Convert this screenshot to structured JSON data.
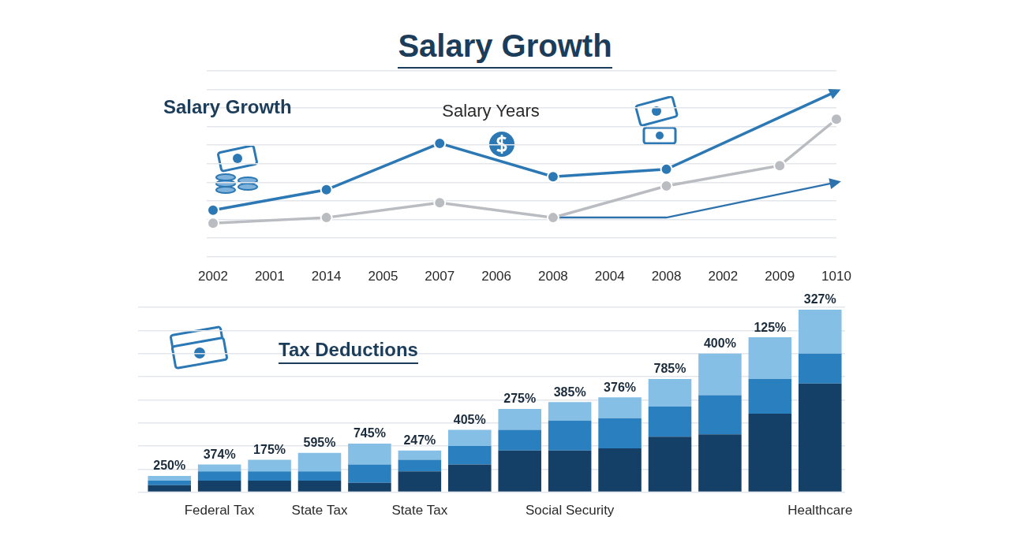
{
  "header": {
    "title": "Salary Growth"
  },
  "chart_data": [
    {
      "type": "line",
      "title": "Salary Growth",
      "subtitle": "Salary Years",
      "categories": [
        "2002",
        "2001",
        "2014",
        "2005",
        "2007",
        "2006",
        "2008",
        "2004",
        "2008",
        "2002",
        "2009",
        "1010"
      ],
      "series": [
        {
          "color": "#2b78b4",
          "marker": "circle",
          "line_style": "arrow",
          "values": [
            25,
            null,
            36,
            null,
            61,
            null,
            43,
            null,
            47,
            null,
            null,
            89
          ]
        },
        {
          "color": "#b9bcc0",
          "marker": "circle",
          "line_style": "solid",
          "values": [
            18,
            null,
            21,
            null,
            29,
            null,
            21,
            null,
            38,
            null,
            49,
            74
          ]
        },
        {
          "color": "#2e72ad",
          "marker": "none",
          "line_style": "arrow",
          "values": [
            null,
            null,
            null,
            null,
            null,
            null,
            21,
            null,
            21,
            null,
            null,
            40
          ]
        }
      ],
      "ylim": [
        0,
        100
      ],
      "yticks": [
        0,
        10,
        20,
        30,
        40,
        50,
        60,
        70,
        80,
        90,
        100
      ],
      "grid": true,
      "tick_labels": "x"
    },
    {
      "type": "bar",
      "title": "Tax Deductions",
      "categories": [
        null,
        "Federal Tax",
        null,
        "State Tax",
        null,
        "State Tax",
        null,
        null,
        "Social Security",
        null,
        null,
        null,
        null,
        "Healthcare"
      ],
      "series": [
        {
          "color": "#143f66",
          "values": [
            3,
            5,
            5,
            5,
            4,
            9,
            12,
            18,
            18,
            19,
            24,
            25,
            34,
            47
          ]
        },
        {
          "color": "#2a7fbf",
          "values": [
            2,
            4,
            4,
            4,
            8,
            5,
            8,
            9,
            13,
            13,
            13,
            17,
            15,
            13
          ]
        },
        {
          "color": "#86bfe6",
          "values": [
            2,
            3,
            5,
            8,
            9,
            4,
            7,
            9,
            8,
            9,
            12,
            18,
            18,
            19
          ]
        }
      ],
      "annotations": [
        "250%",
        "374%",
        "175%",
        "595%",
        "745%",
        "247%",
        "405%",
        "275%",
        "385%",
        "376%",
        "785%",
        "400%",
        "125%",
        "327%"
      ],
      "stacked": true,
      "ylim": [
        0,
        80
      ],
      "yticks": [
        0,
        10,
        20,
        30,
        40,
        50,
        60,
        70,
        80
      ],
      "grid": true,
      "tick_labels": "x"
    }
  ]
}
